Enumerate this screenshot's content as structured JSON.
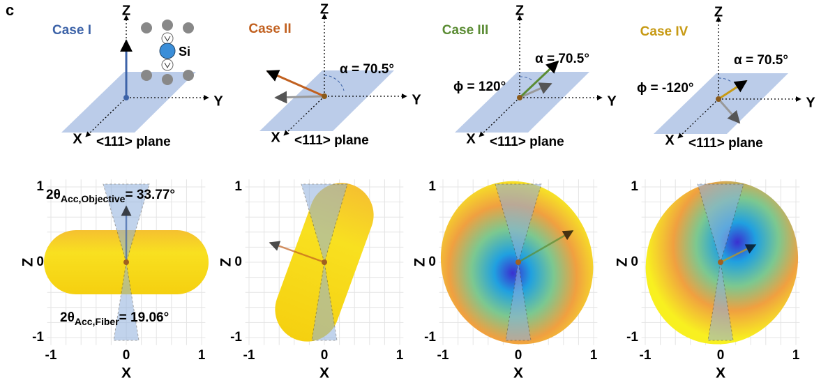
{
  "panel_label": "c",
  "cases": [
    {
      "title": "Case I",
      "color": "#3d63a8",
      "axes": {
        "z": "Z",
        "y": "Y",
        "x": "X"
      },
      "plane": "<111> plane",
      "atom": "Si",
      "plot": {
        "x_label": "X",
        "y_label": "Z",
        "xticks": [
          "-1",
          "0",
          "1"
        ],
        "yticks": [
          "1",
          "0",
          "-1"
        ]
      },
      "acc_objective": {
        "symbol": "2θ",
        "subscript": "Acc,Objective",
        "value": "= 33.77°"
      },
      "acc_fiber": {
        "symbol": "2θ",
        "subscript": "Acc,Fiber",
        "value": "= 19.06°"
      }
    },
    {
      "title": "Case II",
      "color": "#c1601f",
      "axes": {
        "z": "Z",
        "y": "Y",
        "x": "X"
      },
      "plane": "<111> plane",
      "alpha": "α = 70.5°",
      "plot": {
        "x_label": "X",
        "y_label": "Z",
        "xticks": [
          "-1",
          "0",
          "1"
        ],
        "yticks": [
          "1",
          "0",
          "-1"
        ]
      }
    },
    {
      "title": "Case III",
      "color": "#5b8c34",
      "axes": {
        "z": "Z",
        "y": "Y",
        "x": "X"
      },
      "plane": "<111> plane",
      "alpha": "α = 70.5°",
      "phi": "ϕ = 120°",
      "plot": {
        "x_label": "X",
        "y_label": "Z",
        "xticks": [
          "-1",
          "0",
          "1"
        ],
        "yticks": [
          "1",
          "0",
          "-1"
        ]
      }
    },
    {
      "title": "Case IV",
      "color": "#c79a14",
      "axes": {
        "z": "Z",
        "y": "Y",
        "x": "X"
      },
      "plane": "<111> plane",
      "alpha": "α = 70.5°",
      "phi": "ϕ = -120°",
      "plot": {
        "x_label": "X",
        "y_label": "Z",
        "xticks": [
          "-1",
          "0",
          "1"
        ],
        "yticks": [
          "1",
          "0",
          "-1"
        ]
      }
    }
  ]
}
